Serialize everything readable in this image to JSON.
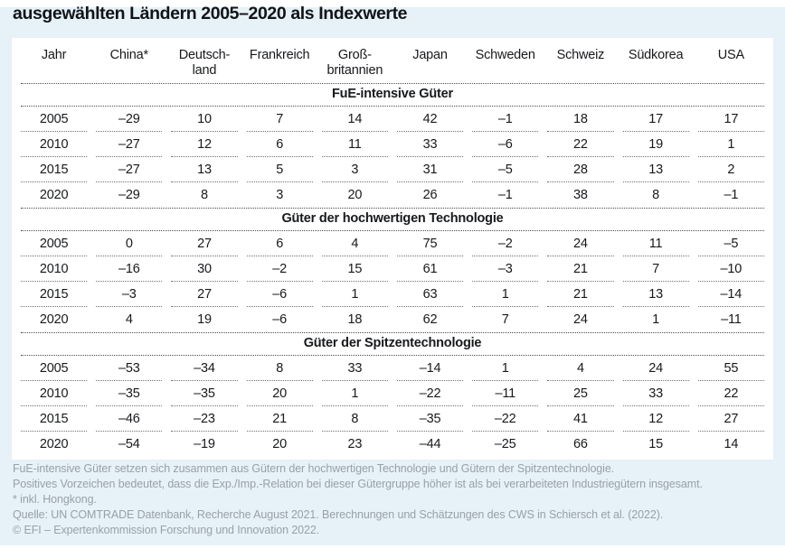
{
  "title": "ausgewählten Ländern 2005–2020 als Indexwerte",
  "colors": {
    "page_background": "#e6f1f8",
    "panel_background": "#ffffff",
    "table_text": "#17191c",
    "footnote_text": "#99a1a8",
    "rule": "#4c4c4c"
  },
  "chart_data": {
    "type": "table",
    "title": "ausgewählten Ländern 2005–2020 als Indexwerte",
    "columns": [
      "Jahr",
      "China*",
      "Deutschland",
      "Frankreich",
      "Großbritannien",
      "Japan",
      "Schweden",
      "Schweiz",
      "Südkorea",
      "USA"
    ],
    "column_display": [
      [
        "Jahr",
        ""
      ],
      [
        "China*",
        ""
      ],
      [
        "Deutsch-",
        "land"
      ],
      [
        "Frankreich",
        ""
      ],
      [
        "Groß-",
        "britannien"
      ],
      [
        "Japan",
        ""
      ],
      [
        "Schweden",
        ""
      ],
      [
        "Schweiz",
        ""
      ],
      [
        "Südkorea",
        ""
      ],
      [
        "USA",
        ""
      ]
    ],
    "sections": [
      {
        "title": "FuE-intensive Güter",
        "rows": [
          [
            "2005",
            "–29",
            "10",
            "7",
            "14",
            "42",
            "–1",
            "18",
            "17",
            "17"
          ],
          [
            "2010",
            "–27",
            "12",
            "6",
            "11",
            "33",
            "–6",
            "22",
            "19",
            "1"
          ],
          [
            "2015",
            "–27",
            "13",
            "5",
            "3",
            "31",
            "–5",
            "28",
            "13",
            "2"
          ],
          [
            "2020",
            "–29",
            "8",
            "3",
            "20",
            "26",
            "–1",
            "38",
            "8",
            "–1"
          ]
        ]
      },
      {
        "title": "Güter der hochwertigen Technologie",
        "rows": [
          [
            "2005",
            "0",
            "27",
            "6",
            "4",
            "75",
            "–2",
            "24",
            "11",
            "–5"
          ],
          [
            "2010",
            "–16",
            "30",
            "–2",
            "15",
            "61",
            "–3",
            "21",
            "7",
            "–10"
          ],
          [
            "2015",
            "–3",
            "27",
            "–6",
            "1",
            "63",
            "1",
            "21",
            "13",
            "–14"
          ],
          [
            "2020",
            "4",
            "19",
            "–6",
            "18",
            "62",
            "7",
            "24",
            "1",
            "–11"
          ]
        ]
      },
      {
        "title": "Güter der Spitzentechnologie",
        "rows": [
          [
            "2005",
            "–53",
            "–34",
            "8",
            "33",
            "–14",
            "1",
            "4",
            "24",
            "55"
          ],
          [
            "2010",
            "–35",
            "–35",
            "20",
            "1",
            "–22",
            "–11",
            "25",
            "33",
            "22"
          ],
          [
            "2015",
            "–46",
            "–23",
            "21",
            "8",
            "–35",
            "–22",
            "41",
            "12",
            "27"
          ],
          [
            "2020",
            "–54",
            "–19",
            "20",
            "23",
            "–44",
            "–25",
            "66",
            "15",
            "14"
          ]
        ]
      }
    ]
  },
  "footnotes": [
    "FuE-intensive Güter setzen sich zusammen aus Gütern der hochwertigen Technologie und Gütern der Spitzentechnologie.",
    "Positives Vorzeichen bedeutet, dass die Exp./Imp.-Relation bei dieser Gütergruppe höher ist als bei verarbeiteten Industriegütern insgesamt.",
    "* inkl. Hongkong.",
    "Quelle: UN COMTRADE Datenbank, Recherche August 2021. Berechnungen und Schätzungen des CWS in Schiersch et al. (2022).",
    "© EFI – Expertenkommission Forschung und Innovation 2022."
  ]
}
